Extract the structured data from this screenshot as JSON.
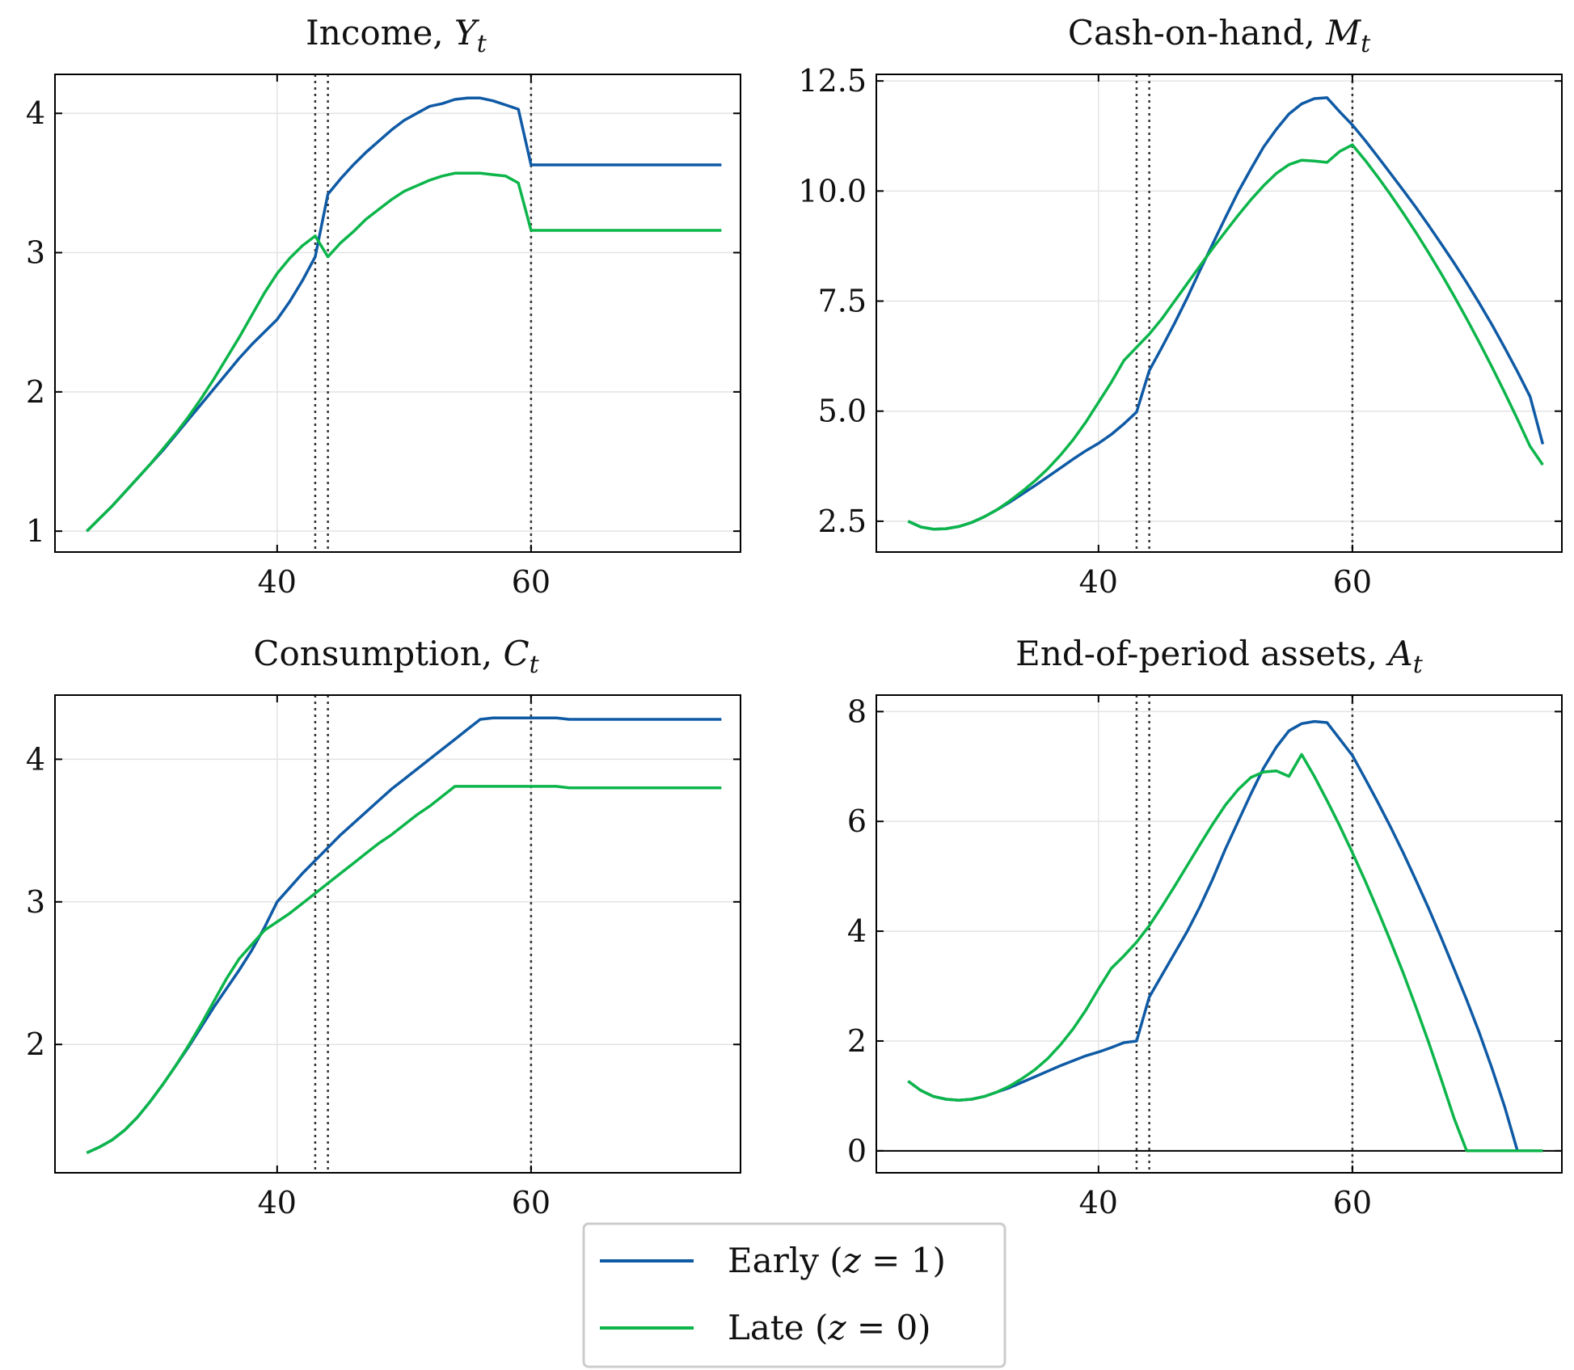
{
  "colors": {
    "early": "#0f5aa5",
    "late": "#0cb54a",
    "vline": "#333333",
    "grid": "#e3e3e3",
    "axis": "#000000"
  },
  "vlines": [
    43,
    44,
    60
  ],
  "legend": {
    "placement": "bottom-center",
    "entries": [
      {
        "prefix": "Early (",
        "var": "z",
        "suffix": " = 1)"
      },
      {
        "prefix": "Late (",
        "var": "z",
        "suffix": " = 0)"
      }
    ]
  },
  "chart_data": [
    {
      "type": "line",
      "title": {
        "text": "Income, ",
        "var": "Y",
        "sub": "t"
      },
      "xlabel": "",
      "ylabel": "",
      "xlim": [
        22.5,
        76.5
      ],
      "ylim": [
        0.85,
        4.28
      ],
      "xticks": [
        40,
        60
      ],
      "yticks": [
        1,
        2,
        3,
        4
      ],
      "grid": true,
      "zero_line": false,
      "x": [
        25,
        26,
        27,
        28,
        29,
        30,
        31,
        32,
        33,
        34,
        35,
        36,
        37,
        38,
        39,
        40,
        41,
        42,
        43,
        44,
        45,
        46,
        47,
        48,
        49,
        50,
        51,
        52,
        53,
        54,
        55,
        56,
        57,
        58,
        59,
        60,
        61,
        62,
        63,
        64,
        65,
        66,
        67,
        68,
        69,
        70,
        71,
        72,
        73,
        74,
        75
      ],
      "series": [
        {
          "key": "early",
          "values": [
            1.0,
            1.09,
            1.18,
            1.28,
            1.38,
            1.48,
            1.58,
            1.69,
            1.8,
            1.91,
            2.02,
            2.13,
            2.24,
            2.34,
            2.43,
            2.52,
            2.65,
            2.8,
            2.97,
            3.42,
            3.53,
            3.63,
            3.72,
            3.8,
            3.88,
            3.95,
            4.0,
            4.05,
            4.07,
            4.1,
            4.11,
            4.11,
            4.09,
            4.06,
            4.03,
            3.63,
            3.63,
            3.63,
            3.63,
            3.63,
            3.63,
            3.63,
            3.63,
            3.63,
            3.63,
            3.63,
            3.63,
            3.63,
            3.63,
            3.63,
            3.63
          ]
        },
        {
          "key": "late",
          "values": [
            1.0,
            1.09,
            1.18,
            1.28,
            1.38,
            1.48,
            1.59,
            1.7,
            1.82,
            1.95,
            2.09,
            2.24,
            2.39,
            2.55,
            2.71,
            2.85,
            2.96,
            3.05,
            3.12,
            2.97,
            3.07,
            3.15,
            3.24,
            3.31,
            3.38,
            3.44,
            3.48,
            3.52,
            3.55,
            3.57,
            3.57,
            3.57,
            3.56,
            3.55,
            3.5,
            3.16,
            3.16,
            3.16,
            3.16,
            3.16,
            3.16,
            3.16,
            3.16,
            3.16,
            3.16,
            3.16,
            3.16,
            3.16,
            3.16,
            3.16,
            3.16
          ]
        }
      ]
    },
    {
      "type": "line",
      "title": {
        "text": "Cash-on-hand, ",
        "var": "M",
        "sub": "t"
      },
      "xlabel": "",
      "ylabel": "",
      "xlim": [
        22.5,
        76.5
      ],
      "ylim": [
        1.8,
        12.65
      ],
      "xticks": [
        40,
        60
      ],
      "yticks": [
        2.5,
        5.0,
        7.5,
        10.0,
        12.5
      ],
      "grid": true,
      "zero_line": false,
      "x": [
        25,
        26,
        27,
        28,
        29,
        30,
        31,
        32,
        33,
        34,
        35,
        36,
        37,
        38,
        39,
        40,
        41,
        42,
        43,
        44,
        45,
        46,
        47,
        48,
        49,
        50,
        51,
        52,
        53,
        54,
        55,
        56,
        57,
        58,
        59,
        60,
        61,
        62,
        63,
        64,
        65,
        66,
        67,
        68,
        69,
        70,
        71,
        72,
        73,
        74,
        75
      ],
      "series": [
        {
          "key": "early",
          "values": [
            2.5,
            2.37,
            2.32,
            2.33,
            2.38,
            2.47,
            2.6,
            2.76,
            2.93,
            3.12,
            3.31,
            3.51,
            3.71,
            3.91,
            4.1,
            4.27,
            4.47,
            4.71,
            4.98,
            5.92,
            6.45,
            7.0,
            7.58,
            8.2,
            8.8,
            9.4,
            9.98,
            10.5,
            11.0,
            11.4,
            11.75,
            11.98,
            12.1,
            12.12,
            11.8,
            11.5,
            11.15,
            10.78,
            10.4,
            10.02,
            9.63,
            9.22,
            8.8,
            8.37,
            7.92,
            7.45,
            6.96,
            6.44,
            5.9,
            5.33,
            4.25
          ]
        },
        {
          "key": "late",
          "values": [
            2.5,
            2.37,
            2.32,
            2.33,
            2.38,
            2.47,
            2.6,
            2.76,
            2.96,
            3.18,
            3.42,
            3.69,
            4.0,
            4.35,
            4.75,
            5.2,
            5.65,
            6.15,
            6.45,
            6.75,
            7.1,
            7.5,
            7.9,
            8.3,
            8.7,
            9.08,
            9.45,
            9.8,
            10.12,
            10.4,
            10.6,
            10.7,
            10.68,
            10.65,
            10.9,
            11.05,
            10.7,
            10.32,
            9.92,
            9.5,
            9.06,
            8.6,
            8.12,
            7.62,
            7.1,
            6.56,
            6.0,
            5.42,
            4.82,
            4.2,
            3.78
          ]
        }
      ]
    },
    {
      "type": "line",
      "title": {
        "text": "Consumption, ",
        "var": "C",
        "sub": "t"
      },
      "xlabel": "",
      "ylabel": "",
      "xlim": [
        22.5,
        76.5
      ],
      "ylim": [
        1.1,
        4.45
      ],
      "xticks": [
        40,
        60
      ],
      "yticks": [
        2,
        3,
        4
      ],
      "grid": true,
      "zero_line": false,
      "x": [
        25,
        26,
        27,
        28,
        29,
        30,
        31,
        32,
        33,
        34,
        35,
        36,
        37,
        38,
        39,
        40,
        41,
        42,
        43,
        44,
        45,
        46,
        47,
        48,
        49,
        50,
        51,
        52,
        53,
        54,
        55,
        56,
        57,
        58,
        59,
        60,
        61,
        62,
        63,
        64,
        65,
        66,
        67,
        68,
        69,
        70,
        71,
        72,
        73,
        74,
        75
      ],
      "series": [
        {
          "key": "early",
          "values": [
            1.24,
            1.28,
            1.33,
            1.4,
            1.49,
            1.6,
            1.72,
            1.85,
            1.98,
            2.12,
            2.26,
            2.39,
            2.52,
            2.66,
            2.82,
            3.0,
            3.1,
            3.2,
            3.29,
            3.38,
            3.47,
            3.55,
            3.63,
            3.71,
            3.79,
            3.86,
            3.93,
            4.0,
            4.07,
            4.14,
            4.21,
            4.28,
            4.29,
            4.29,
            4.29,
            4.29,
            4.29,
            4.29,
            4.28,
            4.28,
            4.28,
            4.28,
            4.28,
            4.28,
            4.28,
            4.28,
            4.28,
            4.28,
            4.28,
            4.28,
            4.28
          ]
        },
        {
          "key": "late",
          "values": [
            1.24,
            1.28,
            1.33,
            1.4,
            1.49,
            1.6,
            1.72,
            1.85,
            1.99,
            2.14,
            2.3,
            2.46,
            2.6,
            2.7,
            2.8,
            2.86,
            2.92,
            2.99,
            3.06,
            3.13,
            3.2,
            3.27,
            3.34,
            3.41,
            3.47,
            3.54,
            3.61,
            3.67,
            3.74,
            3.81,
            3.81,
            3.81,
            3.81,
            3.81,
            3.81,
            3.81,
            3.81,
            3.81,
            3.8,
            3.8,
            3.8,
            3.8,
            3.8,
            3.8,
            3.8,
            3.8,
            3.8,
            3.8,
            3.8,
            3.8,
            3.8
          ]
        }
      ]
    },
    {
      "type": "line",
      "title": {
        "text": "End-of-period assets, ",
        "var": "A",
        "sub": "t"
      },
      "xlabel": "",
      "ylabel": "",
      "xlim": [
        22.5,
        76.5
      ],
      "ylim": [
        -0.4,
        8.3
      ],
      "xticks": [
        40,
        60
      ],
      "yticks": [
        0,
        2,
        4,
        6,
        8
      ],
      "grid": true,
      "zero_line": true,
      "x": [
        25,
        26,
        27,
        28,
        29,
        30,
        31,
        32,
        33,
        34,
        35,
        36,
        37,
        38,
        39,
        40,
        41,
        42,
        43,
        44,
        45,
        46,
        47,
        48,
        49,
        50,
        51,
        52,
        53,
        54,
        55,
        56,
        57,
        58,
        59,
        60,
        61,
        62,
        63,
        64,
        65,
        66,
        67,
        68,
        69,
        70,
        71,
        72,
        73,
        74,
        75
      ],
      "series": [
        {
          "key": "early",
          "values": [
            1.27,
            1.1,
            0.99,
            0.94,
            0.92,
            0.94,
            0.99,
            1.07,
            1.15,
            1.25,
            1.35,
            1.45,
            1.55,
            1.64,
            1.73,
            1.8,
            1.88,
            1.97,
            2.0,
            2.8,
            3.2,
            3.6,
            4.0,
            4.45,
            4.95,
            5.5,
            6.0,
            6.5,
            6.97,
            7.35,
            7.65,
            7.78,
            7.82,
            7.8,
            7.5,
            7.2,
            6.78,
            6.35,
            5.9,
            5.43,
            4.93,
            4.42,
            3.88,
            3.32,
            2.75,
            2.15,
            1.5,
            0.8,
            0.0,
            0.0,
            0.0
          ]
        },
        {
          "key": "late",
          "values": [
            1.27,
            1.1,
            0.99,
            0.94,
            0.92,
            0.94,
            0.99,
            1.07,
            1.18,
            1.32,
            1.48,
            1.68,
            1.93,
            2.22,
            2.56,
            2.95,
            3.32,
            3.55,
            3.8,
            4.1,
            4.45,
            4.82,
            5.2,
            5.58,
            5.95,
            6.3,
            6.58,
            6.8,
            6.9,
            6.92,
            6.82,
            7.22,
            6.82,
            6.38,
            5.92,
            5.43,
            4.92,
            4.38,
            3.82,
            3.24,
            2.62,
            1.98,
            1.3,
            0.6,
            0.0,
            0.0,
            0.0,
            0.0,
            0.0,
            0.0,
            0.0
          ]
        }
      ]
    }
  ]
}
